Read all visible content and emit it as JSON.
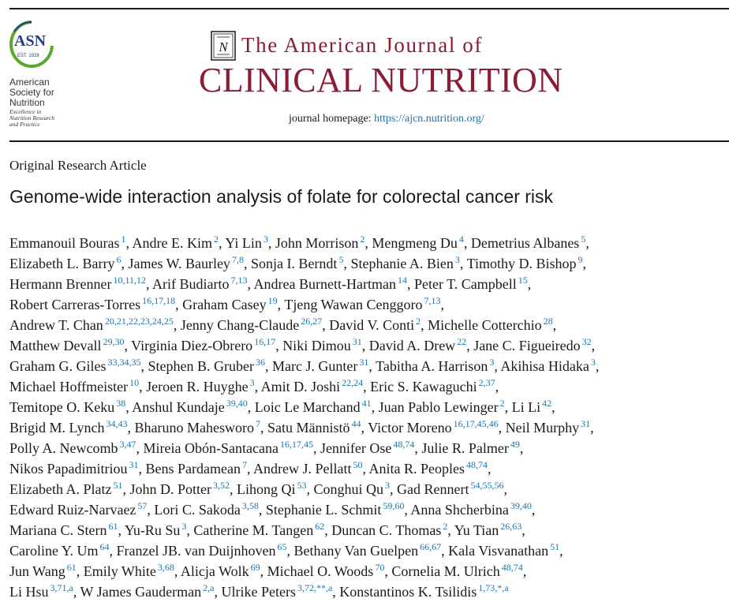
{
  "society": {
    "logo_text": "ASN",
    "est": "EST. 1928",
    "name_lines": [
      "American",
      "Society for",
      "Nutrition"
    ],
    "tagline_lines": [
      "Excellence in",
      "Nutrition Research",
      "and Practice"
    ],
    "accent_color": "#5aa832",
    "primary_color": "#1f3e8c"
  },
  "journal": {
    "title_top": "The American Journal of",
    "title_main": "CLINICAL NUTRITION",
    "homepage_label": "journal homepage:",
    "homepage_url": "https://ajcn.nutrition.org/",
    "brand_color": "#8a1c33"
  },
  "article": {
    "type": "Original Research Article",
    "title": "Genome-wide interaction analysis of folate for colorectal cancer risk"
  },
  "author_lines": [
    [
      {
        "n": "Emmanouil Bouras",
        "a": "1"
      },
      {
        "n": "Andre E. Kim",
        "a": "2"
      },
      {
        "n": "Yi Lin",
        "a": "3"
      },
      {
        "n": "John Morrison",
        "a": "2"
      },
      {
        "n": "Mengmeng Du",
        "a": "4"
      },
      {
        "n": "Demetrius Albanes",
        "a": "5"
      }
    ],
    [
      {
        "n": "Elizabeth L. Barry",
        "a": "6"
      },
      {
        "n": "James W. Baurley",
        "a": "7,8"
      },
      {
        "n": "Sonja I. Berndt",
        "a": "5"
      },
      {
        "n": "Stephanie A. Bien",
        "a": "3"
      },
      {
        "n": "Timothy D. Bishop",
        "a": "9"
      }
    ],
    [
      {
        "n": "Hermann Brenner",
        "a": "10,11,12"
      },
      {
        "n": "Arif Budiarto",
        "a": "7,13"
      },
      {
        "n": "Andrea Burnett-Hartman",
        "a": "14"
      },
      {
        "n": "Peter T. Campbell",
        "a": "15"
      }
    ],
    [
      {
        "n": "Robert Carreras-Torres",
        "a": "16,17,18"
      },
      {
        "n": "Graham Casey",
        "a": "19"
      },
      {
        "n": "Tjeng Wawan Cenggoro",
        "a": "7,13"
      }
    ],
    [
      {
        "n": "Andrew T. Chan",
        "a": "20,21,22,23,24,25"
      },
      {
        "n": "Jenny Chang-Claude",
        "a": "26,27"
      },
      {
        "n": "David V. Conti",
        "a": "2"
      },
      {
        "n": "Michelle Cotterchio",
        "a": "28"
      }
    ],
    [
      {
        "n": "Matthew Devall",
        "a": "29,30"
      },
      {
        "n": "Virginia Diez-Obrero",
        "a": "16,17"
      },
      {
        "n": "Niki Dimou",
        "a": "31"
      },
      {
        "n": "David A. Drew",
        "a": "22"
      },
      {
        "n": "Jane C. Figueiredo",
        "a": "32"
      }
    ],
    [
      {
        "n": "Graham G. Giles",
        "a": "33,34,35"
      },
      {
        "n": "Stephen B. Gruber",
        "a": "36"
      },
      {
        "n": "Marc J. Gunter",
        "a": "31"
      },
      {
        "n": "Tabitha A. Harrison",
        "a": "3"
      },
      {
        "n": "Akihisa Hidaka",
        "a": "3"
      }
    ],
    [
      {
        "n": "Michael Hoffmeister",
        "a": "10"
      },
      {
        "n": "Jeroen R. Huyghe",
        "a": "3"
      },
      {
        "n": "Amit D. Joshi",
        "a": "22,24"
      },
      {
        "n": "Eric S. Kawaguchi",
        "a": "2,37"
      }
    ],
    [
      {
        "n": "Temitope O. Keku",
        "a": "38"
      },
      {
        "n": "Anshul Kundaje",
        "a": "39,40"
      },
      {
        "n": "Loic Le Marchand",
        "a": "41"
      },
      {
        "n": "Juan Pablo Lewinger",
        "a": "2"
      },
      {
        "n": "Li Li",
        "a": "42"
      }
    ],
    [
      {
        "n": "Brigid M. Lynch",
        "a": "34,43"
      },
      {
        "n": "Bharuno Mahesworo",
        "a": "7"
      },
      {
        "n": "Satu Männistö",
        "a": "44"
      },
      {
        "n": "Victor Moreno",
        "a": "16,17,45,46"
      },
      {
        "n": "Neil Murphy",
        "a": "31"
      }
    ],
    [
      {
        "n": "Polly A. Newcomb",
        "a": "3,47"
      },
      {
        "n": "Mireia Obón-Santacana",
        "a": "16,17,45"
      },
      {
        "n": "Jennifer Ose",
        "a": "48,74"
      },
      {
        "n": "Julie R. Palmer",
        "a": "49"
      }
    ],
    [
      {
        "n": "Nikos Papadimitriou",
        "a": "31"
      },
      {
        "n": "Bens Pardamean",
        "a": "7"
      },
      {
        "n": "Andrew J. Pellatt",
        "a": "50"
      },
      {
        "n": "Anita R. Peoples",
        "a": "48,74"
      }
    ],
    [
      {
        "n": "Elizabeth A. Platz",
        "a": "51"
      },
      {
        "n": "John D. Potter",
        "a": "3,52"
      },
      {
        "n": "Lihong Qi",
        "a": "53"
      },
      {
        "n": "Conghui Qu",
        "a": "3"
      },
      {
        "n": "Gad Rennert",
        "a": "54,55,56"
      }
    ],
    [
      {
        "n": "Edward Ruiz-Narvaez",
        "a": "57"
      },
      {
        "n": "Lori C. Sakoda",
        "a": "3,58"
      },
      {
        "n": "Stephanie L. Schmit",
        "a": "59,60"
      },
      {
        "n": "Anna Shcherbina",
        "a": "39,40"
      }
    ],
    [
      {
        "n": "Mariana C. Stern",
        "a": "61"
      },
      {
        "n": "Yu-Ru Su",
        "a": "3"
      },
      {
        "n": "Catherine M. Tangen",
        "a": "62"
      },
      {
        "n": "Duncan C. Thomas",
        "a": "2"
      },
      {
        "n": "Yu Tian",
        "a": "26,63"
      }
    ],
    [
      {
        "n": "Caroline Y. Um",
        "a": "64"
      },
      {
        "n": "Franzel JB. van Duijnhoven",
        "a": "65"
      },
      {
        "n": "Bethany Van Guelpen",
        "a": "66,67"
      },
      {
        "n": "Kala Visvanathan",
        "a": "51"
      }
    ],
    [
      {
        "n": "Jun Wang",
        "a": "61"
      },
      {
        "n": "Emily White",
        "a": "3,68"
      },
      {
        "n": "Alicja Wolk",
        "a": "69"
      },
      {
        "n": "Michael O. Woods",
        "a": "70"
      },
      {
        "n": "Cornelia M. Ulrich",
        "a": "48,74"
      }
    ],
    [
      {
        "n": "Li Hsu",
        "a": "3,71,a"
      },
      {
        "n": "W James Gauderman",
        "a": "2,a"
      },
      {
        "n": "Ulrike Peters",
        "a": "3,72,**,a"
      },
      {
        "n": "Konstantinos K. Tsilidis",
        "a": "1,73,*,a"
      }
    ]
  ]
}
